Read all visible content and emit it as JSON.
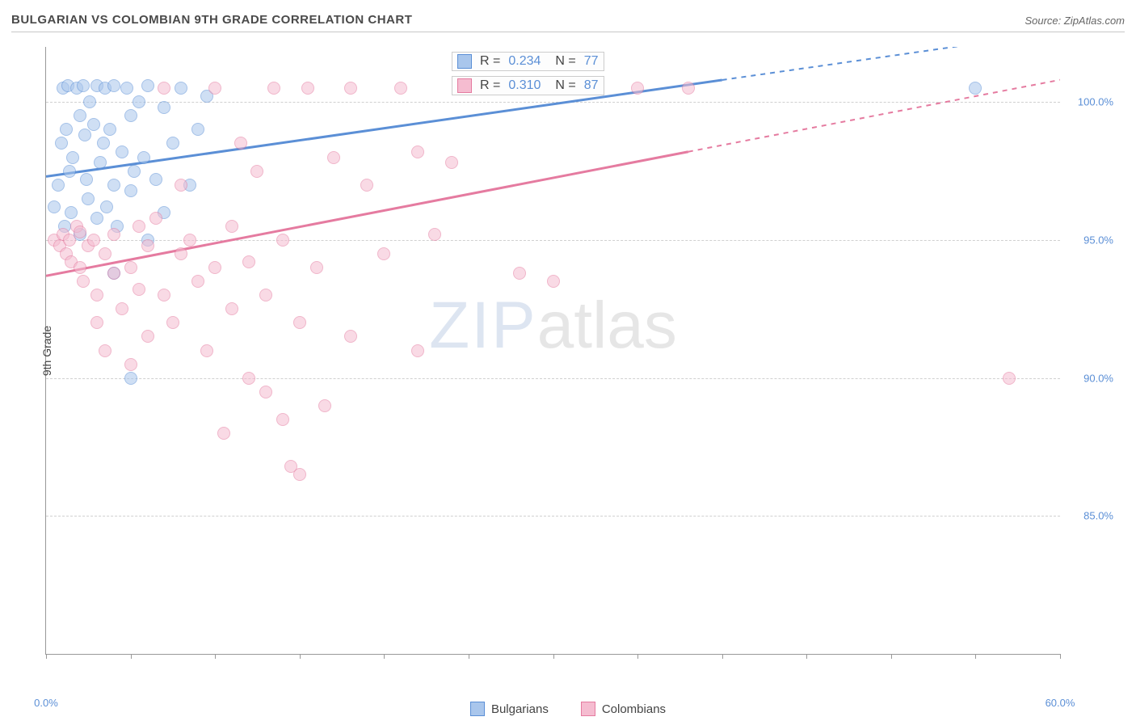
{
  "header": {
    "title": "BULGARIAN VS COLOMBIAN 9TH GRADE CORRELATION CHART",
    "source": "Source: ZipAtlas.com"
  },
  "chart": {
    "type": "scatter",
    "ylabel": "9th Grade",
    "xlim": [
      0,
      60
    ],
    "ylim": [
      80,
      102
    ],
    "xtick_positions": [
      0,
      5,
      10,
      15,
      20,
      25,
      30,
      35,
      40,
      45,
      50,
      55,
      60
    ],
    "xtick_labels": {
      "0": "0.0%",
      "60": "60.0%"
    },
    "ytick_positions": [
      85,
      90,
      95,
      100
    ],
    "ytick_labels": {
      "85": "85.0%",
      "90": "90.0%",
      "95": "95.0%",
      "100": "100.0%"
    },
    "grid_color": "#d0d0d0",
    "background_color": "#ffffff",
    "marker_radius": 8,
    "marker_opacity": 0.55,
    "series": [
      {
        "name": "Bulgarians",
        "color_stroke": "#5b8fd6",
        "color_fill": "#a9c6ec",
        "r_label": "R =",
        "r_value": "0.234",
        "n_label": "N =",
        "n_value": "77",
        "trend": {
          "x0": 0,
          "y0": 97.3,
          "x1": 40,
          "y1": 100.8,
          "dash_after_x": 40,
          "x2": 56
        },
        "points": [
          [
            0.5,
            96.2
          ],
          [
            0.7,
            97.0
          ],
          [
            0.9,
            98.5
          ],
          [
            1.0,
            100.5
          ],
          [
            1.1,
            95.5
          ],
          [
            1.2,
            99.0
          ],
          [
            1.3,
            100.6
          ],
          [
            1.4,
            97.5
          ],
          [
            1.5,
            96.0
          ],
          [
            1.6,
            98.0
          ],
          [
            1.8,
            100.5
          ],
          [
            2.0,
            99.5
          ],
          [
            2.0,
            95.2
          ],
          [
            2.2,
            100.6
          ],
          [
            2.3,
            98.8
          ],
          [
            2.4,
            97.2
          ],
          [
            2.5,
            96.5
          ],
          [
            2.6,
            100.0
          ],
          [
            2.8,
            99.2
          ],
          [
            3.0,
            95.8
          ],
          [
            3.0,
            100.6
          ],
          [
            3.2,
            97.8
          ],
          [
            3.4,
            98.5
          ],
          [
            3.5,
            100.5
          ],
          [
            3.6,
            96.2
          ],
          [
            3.8,
            99.0
          ],
          [
            4.0,
            97.0
          ],
          [
            4.0,
            100.6
          ],
          [
            4.2,
            95.5
          ],
          [
            4.5,
            98.2
          ],
          [
            4.8,
            100.5
          ],
          [
            5.0,
            96.8
          ],
          [
            5.0,
            99.5
          ],
          [
            5.2,
            97.5
          ],
          [
            5.5,
            100.0
          ],
          [
            5.8,
            98.0
          ],
          [
            6.0,
            100.6
          ],
          [
            6.0,
            95.0
          ],
          [
            6.5,
            97.2
          ],
          [
            7.0,
            99.8
          ],
          [
            7.0,
            96.0
          ],
          [
            7.5,
            98.5
          ],
          [
            8.0,
            100.5
          ],
          [
            8.5,
            97.0
          ],
          [
            9.0,
            99.0
          ],
          [
            9.5,
            100.2
          ],
          [
            5.0,
            90.0
          ],
          [
            4.0,
            93.8
          ],
          [
            55.0,
            100.5
          ]
        ]
      },
      {
        "name": "Colombians",
        "color_stroke": "#e57ba0",
        "color_fill": "#f5bcd0",
        "r_label": "R =",
        "r_value": "0.310",
        "n_label": "N =",
        "n_value": "87",
        "trend": {
          "x0": 0,
          "y0": 93.7,
          "x1": 38,
          "y1": 98.2,
          "dash_after_x": 38,
          "x2": 60
        },
        "points": [
          [
            0.5,
            95.0
          ],
          [
            0.8,
            94.8
          ],
          [
            1.0,
            95.2
          ],
          [
            1.2,
            94.5
          ],
          [
            1.4,
            95.0
          ],
          [
            1.5,
            94.2
          ],
          [
            1.8,
            95.5
          ],
          [
            2.0,
            94.0
          ],
          [
            2.0,
            95.3
          ],
          [
            2.2,
            93.5
          ],
          [
            2.5,
            94.8
          ],
          [
            2.8,
            95.0
          ],
          [
            3.0,
            93.0
          ],
          [
            3.0,
            92.0
          ],
          [
            3.5,
            94.5
          ],
          [
            3.5,
            91.0
          ],
          [
            4.0,
            93.8
          ],
          [
            4.0,
            95.2
          ],
          [
            4.5,
            92.5
          ],
          [
            5.0,
            94.0
          ],
          [
            5.0,
            90.5
          ],
          [
            5.5,
            93.2
          ],
          [
            5.5,
            95.5
          ],
          [
            6.0,
            91.5
          ],
          [
            6.0,
            94.8
          ],
          [
            6.5,
            95.8
          ],
          [
            7.0,
            93.0
          ],
          [
            7.0,
            100.5
          ],
          [
            7.5,
            92.0
          ],
          [
            8.0,
            94.5
          ],
          [
            8.0,
            97.0
          ],
          [
            8.5,
            95.0
          ],
          [
            9.0,
            93.5
          ],
          [
            9.5,
            91.0
          ],
          [
            10.0,
            94.0
          ],
          [
            10.0,
            100.5
          ],
          [
            10.5,
            88.0
          ],
          [
            11.0,
            95.5
          ],
          [
            11.0,
            92.5
          ],
          [
            11.5,
            98.5
          ],
          [
            12.0,
            90.0
          ],
          [
            12.0,
            94.2
          ],
          [
            12.5,
            97.5
          ],
          [
            13.0,
            89.5
          ],
          [
            13.0,
            93.0
          ],
          [
            13.5,
            100.5
          ],
          [
            14.0,
            95.0
          ],
          [
            14.0,
            88.5
          ],
          [
            14.5,
            86.8
          ],
          [
            15.0,
            92.0
          ],
          [
            15.0,
            86.5
          ],
          [
            15.5,
            100.5
          ],
          [
            16.0,
            94.0
          ],
          [
            16.5,
            89.0
          ],
          [
            17.0,
            98.0
          ],
          [
            18.0,
            91.5
          ],
          [
            18.0,
            100.5
          ],
          [
            19.0,
            97.0
          ],
          [
            20.0,
            94.5
          ],
          [
            21.0,
            100.5
          ],
          [
            22.0,
            91.0
          ],
          [
            22.0,
            98.2
          ],
          [
            23.0,
            95.2
          ],
          [
            24.0,
            97.8
          ],
          [
            28.0,
            93.8
          ],
          [
            30.0,
            93.5
          ],
          [
            35.0,
            100.5
          ],
          [
            38.0,
            100.5
          ],
          [
            57.0,
            90.0
          ]
        ]
      }
    ],
    "legend": {
      "items": [
        {
          "label": "Bulgarians",
          "fill": "#a9c6ec",
          "stroke": "#5b8fd6"
        },
        {
          "label": "Colombians",
          "fill": "#f5bcd0",
          "stroke": "#e57ba0"
        }
      ]
    },
    "watermark": {
      "part1": "ZIP",
      "part2": "atlas"
    }
  }
}
